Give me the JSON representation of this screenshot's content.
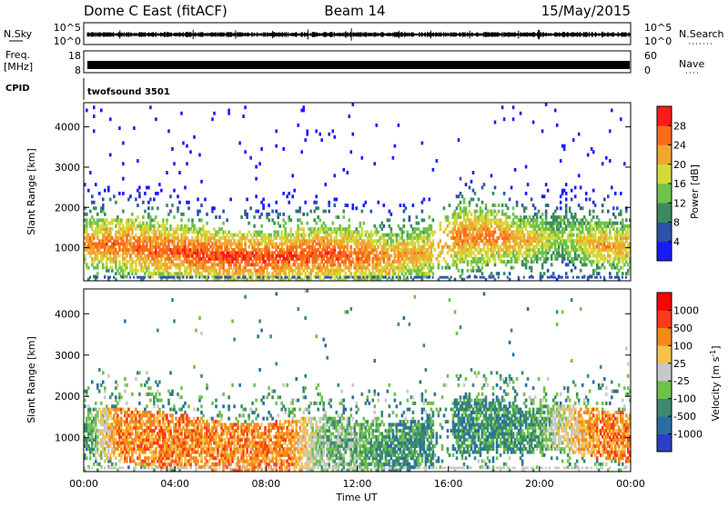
{
  "header": {
    "station": "Dome C East (fitACF)",
    "beam": "Beam 14",
    "date": "15/May/2015"
  },
  "top_panels": {
    "nsky_label": "N.Sky",
    "nsky_ticks": [
      "10^5",
      "10^0"
    ],
    "nsearch_label": "N.Search",
    "nsearch_ticks": [
      "10^5",
      "10^0"
    ],
    "freq_label_1": "Freq.",
    "freq_label_2": "[MHz]",
    "freq_ticks": [
      "18",
      "8"
    ],
    "nave_label": "Nave",
    "nave_ticks": [
      "60",
      "0"
    ],
    "cpid_label": "CPID",
    "cpid_text": "twofsound 3501"
  },
  "chart_data": [
    {
      "type": "heatmap",
      "panel": "power",
      "ylabel": "Slant Range [km]",
      "xlabel": "",
      "xlim": [
        0,
        24
      ],
      "ylim": [
        180,
        4600
      ],
      "ytick_values": [
        1000,
        2000,
        3000,
        4000
      ],
      "ytick_labels": [
        "1000",
        "2000",
        "3000",
        "4000"
      ],
      "colorbar": {
        "label": "Power [dB]",
        "tick_labels": [
          "28",
          "24",
          "20",
          "16",
          "12",
          "8",
          "4"
        ],
        "tick_values": [
          28,
          24,
          20,
          16,
          12,
          8,
          4
        ],
        "range": [
          0,
          32
        ],
        "colors": [
          "#1a1aff",
          "#2b53a8",
          "#3a8c5e",
          "#6fc24a",
          "#d4d93a",
          "#f2a531",
          "#ff6a1a",
          "#ff1a1a"
        ]
      },
      "echo_profile": [
        {
          "t": 0.0,
          "center": 1100,
          "width": 620,
          "level": 24
        },
        {
          "t": 1.5,
          "center": 1100,
          "width": 650,
          "level": 26
        },
        {
          "t": 3.0,
          "center": 950,
          "width": 700,
          "level": 27
        },
        {
          "t": 4.5,
          "center": 900,
          "width": 650,
          "level": 28
        },
        {
          "t": 6.0,
          "center": 800,
          "width": 600,
          "level": 29
        },
        {
          "t": 7.5,
          "center": 750,
          "width": 600,
          "level": 29
        },
        {
          "t": 9.0,
          "center": 780,
          "width": 650,
          "level": 28
        },
        {
          "t": 10.5,
          "center": 850,
          "width": 700,
          "level": 28
        },
        {
          "t": 12.0,
          "center": 800,
          "width": 650,
          "level": 27
        },
        {
          "t": 13.5,
          "center": 750,
          "width": 600,
          "level": 24
        },
        {
          "t": 15.0,
          "center": 900,
          "width": 650,
          "level": 22
        },
        {
          "t": 16.5,
          "center": 1300,
          "width": 700,
          "level": 25
        },
        {
          "t": 18.0,
          "center": 1300,
          "width": 650,
          "level": 26
        },
        {
          "t": 19.5,
          "center": 1200,
          "width": 550,
          "level": 22
        },
        {
          "t": 21.0,
          "center": 1250,
          "width": 550,
          "level": 16
        },
        {
          "t": 22.5,
          "center": 1100,
          "width": 600,
          "level": 23
        },
        {
          "t": 24.0,
          "center": 1000,
          "width": 600,
          "level": 22
        }
      ]
    },
    {
      "type": "heatmap",
      "panel": "velocity",
      "ylabel": "Slant Range [km]",
      "xlabel": "Time UT",
      "xlim": [
        0,
        24
      ],
      "ylim": [
        180,
        4600
      ],
      "xtick_values": [
        0,
        4,
        8,
        12,
        16,
        20,
        24
      ],
      "xtick_labels": [
        "00:00",
        "04:00",
        "08:00",
        "12:00",
        "16:00",
        "20:00",
        "00:00"
      ],
      "ytick_values": [
        1000,
        2000,
        3000,
        4000
      ],
      "ytick_labels": [
        "1000",
        "2000",
        "3000",
        "4000"
      ],
      "colorbar": {
        "label": "Velocity [m s^-1]",
        "tick_labels": [
          "1000",
          "500",
          "100",
          "25",
          "-25",
          "-100",
          "-500",
          "-1000"
        ],
        "colors": [
          "#2b3fc4",
          "#2a6ea0",
          "#3b8a6e",
          "#6dc24a",
          "#c8c8c8",
          "#f7c24a",
          "#f28a1a",
          "#ff3a1a",
          "#ff0000"
        ]
      },
      "echo_profile": [
        {
          "t": 0.0,
          "velocity_class": 2
        },
        {
          "t": 1.5,
          "velocity_class": 6
        },
        {
          "t": 3.0,
          "velocity_class": 6
        },
        {
          "t": 4.5,
          "velocity_class": 6
        },
        {
          "t": 6.0,
          "velocity_class": 6
        },
        {
          "t": 7.5,
          "velocity_class": 6
        },
        {
          "t": 9.0,
          "velocity_class": 6
        },
        {
          "t": 10.5,
          "velocity_class": 3
        },
        {
          "t": 12.0,
          "velocity_class": 3
        },
        {
          "t": 13.5,
          "velocity_class": 2
        },
        {
          "t": 15.0,
          "velocity_class": 2
        },
        {
          "t": 16.5,
          "velocity_class": 2
        },
        {
          "t": 18.0,
          "velocity_class": 2
        },
        {
          "t": 19.5,
          "velocity_class": 2
        },
        {
          "t": 21.0,
          "velocity_class": 4
        },
        {
          "t": 22.5,
          "velocity_class": 6
        },
        {
          "t": 24.0,
          "velocity_class": 6
        }
      ]
    }
  ]
}
